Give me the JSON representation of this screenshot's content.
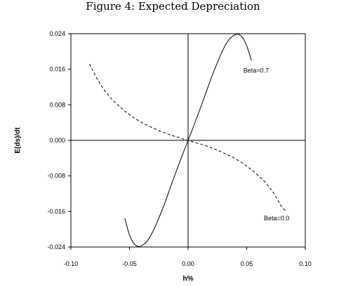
{
  "chart_data": {
    "type": "line",
    "title": "Figure 4: Expected Depreciation",
    "xlabel": "h%",
    "ylabel": "E(ds)/dt",
    "xlim": [
      -0.1,
      0.1
    ],
    "ylim": [
      -0.024,
      0.024
    ],
    "xticks": [
      "-0.10",
      "-0.05",
      "0.00",
      "0.05",
      "0.10"
    ],
    "xtick_values": [
      -0.1,
      -0.05,
      0.0,
      0.05,
      0.1
    ],
    "yticks": [
      "0.024",
      "0.016",
      "0.008",
      "0.000",
      "-0.008",
      "-0.016",
      "-0.024"
    ],
    "ytick_values": [
      0.024,
      0.016,
      0.008,
      0.0,
      -0.008,
      -0.016,
      -0.024
    ],
    "grid": false,
    "series": [
      {
        "name": "Beta=0.7",
        "style": "solid",
        "x": [
          -0.054,
          -0.05,
          -0.046,
          -0.042,
          -0.039,
          -0.035,
          -0.03,
          -0.025,
          -0.02,
          -0.015,
          -0.01,
          -0.005,
          0.0,
          0.005,
          0.01,
          0.015,
          0.02,
          0.025,
          0.03,
          0.035,
          0.039,
          0.042,
          0.046,
          0.05,
          0.054
        ],
        "y": [
          -0.0175,
          -0.0213,
          -0.0233,
          -0.0239,
          -0.0236,
          -0.0227,
          -0.0205,
          -0.0175,
          -0.0142,
          -0.0105,
          -0.0069,
          -0.0034,
          0.0,
          0.0034,
          0.0069,
          0.0105,
          0.0142,
          0.0175,
          0.0205,
          0.0227,
          0.0236,
          0.0239,
          0.0233,
          0.0213,
          0.018
        ]
      },
      {
        "name": "Beta=0.0",
        "style": "dashed",
        "x": [
          -0.084,
          -0.08,
          -0.075,
          -0.07,
          -0.065,
          -0.06,
          -0.055,
          -0.05,
          -0.045,
          -0.04,
          -0.035,
          -0.03,
          -0.025,
          -0.02,
          -0.015,
          -0.01,
          -0.005,
          0.0,
          0.005,
          0.01,
          0.015,
          0.02,
          0.025,
          0.03,
          0.035,
          0.04,
          0.045,
          0.05,
          0.055,
          0.06,
          0.065,
          0.07,
          0.075,
          0.08,
          0.084
        ],
        "y": [
          0.0172,
          0.015,
          0.0127,
          0.0108,
          0.0092,
          0.008,
          0.0068,
          0.0058,
          0.0049,
          0.0041,
          0.0034,
          0.0028,
          0.0022,
          0.0017,
          0.0012,
          0.0008,
          0.0004,
          0.0,
          -0.0004,
          -0.0008,
          -0.0012,
          -0.0017,
          -0.0022,
          -0.0028,
          -0.0034,
          -0.0041,
          -0.0049,
          -0.0058,
          -0.0068,
          -0.008,
          -0.0092,
          -0.0108,
          -0.0127,
          -0.015,
          -0.016
        ]
      }
    ],
    "annotations": [
      {
        "text": "Beta=0.7",
        "x": 0.058,
        "y": 0.0152
      },
      {
        "text": "Beta=0.0",
        "x": 0.0755,
        "y": -0.018
      }
    ]
  }
}
